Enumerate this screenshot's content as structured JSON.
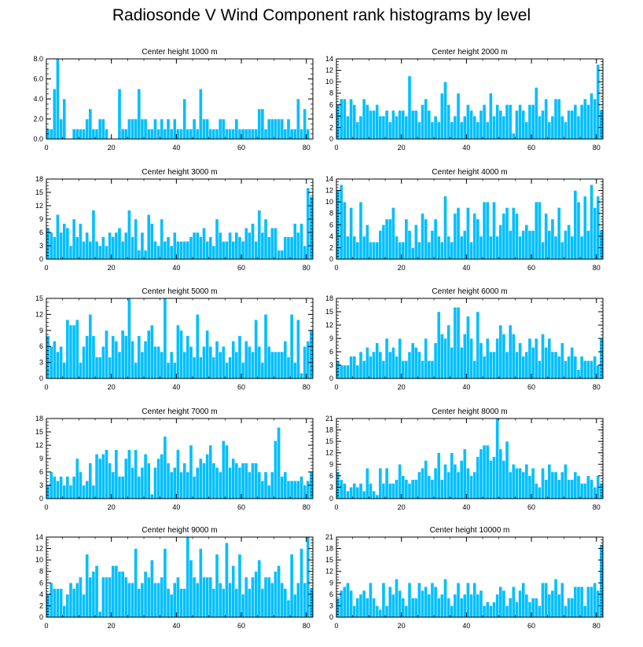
{
  "title": "Radiosonde V Wind Component rank histograms by level",
  "colors": {
    "bar": "#00bfff",
    "bar_edge": "#ffffff",
    "axis": "#000000"
  },
  "chart_data": [
    {
      "type": "bar",
      "title": "Center height 1000 m",
      "ylim": [
        0,
        8
      ],
      "yticks": [
        0,
        2,
        4,
        6,
        8
      ],
      "ytick_labels": [
        "0.0",
        "2.0",
        "4.0",
        "6.0",
        "8.0"
      ],
      "xlim": [
        0,
        82
      ],
      "xticks": [
        0,
        20,
        40,
        60,
        80
      ],
      "xtick_labels": [
        "0",
        "20",
        "40",
        "60",
        "80"
      ],
      "values": [
        1,
        1,
        5,
        8,
        2,
        4,
        0,
        0,
        1,
        1,
        1,
        1,
        2,
        3,
        1,
        1,
        2,
        2,
        1,
        0,
        0,
        0,
        5,
        1,
        1,
        2,
        2,
        2,
        5,
        2,
        2,
        1,
        1,
        2,
        1,
        2,
        1,
        2,
        1,
        2,
        1,
        1,
        4,
        1,
        1,
        2,
        1,
        5,
        2,
        2,
        1,
        1,
        1,
        2,
        2,
        1,
        1,
        1,
        2,
        1,
        1,
        1,
        1,
        1,
        1,
        3,
        3,
        1,
        2,
        2,
        2,
        2,
        2,
        1,
        2,
        1,
        1,
        4,
        1,
        3,
        1,
        0
      ]
    },
    {
      "type": "bar",
      "title": "Center height 2000 m",
      "ylim": [
        0,
        14
      ],
      "yticks": [
        0,
        2,
        4,
        6,
        8,
        10,
        12,
        14
      ],
      "ytick_labels": [
        "0",
        "2",
        "4",
        "6",
        "8",
        "10",
        "12",
        "14"
      ],
      "xlim": [
        0,
        82
      ],
      "xticks": [
        0,
        20,
        40,
        60,
        80
      ],
      "xtick_labels": [
        "0",
        "20",
        "40",
        "60",
        "80"
      ],
      "values": [
        6,
        7,
        7,
        4,
        7,
        6,
        3,
        4,
        7,
        6,
        5,
        5,
        6,
        4,
        4,
        5,
        3,
        5,
        4,
        5,
        5,
        4,
        11,
        5,
        5,
        3,
        6,
        7,
        5,
        3,
        4,
        3,
        8,
        10,
        6,
        3,
        4,
        8,
        3,
        4,
        6,
        5,
        4,
        3,
        5,
        6,
        3,
        8,
        4,
        6,
        5,
        4,
        6,
        6,
        1,
        5,
        6,
        5,
        3,
        6,
        6,
        9,
        4,
        5,
        7,
        3,
        4,
        7,
        7,
        4,
        3,
        5,
        5,
        6,
        4,
        6,
        7,
        6,
        8,
        7,
        13,
        5
      ]
    },
    {
      "type": "bar",
      "title": "Center height 3000 m",
      "ylim": [
        0,
        18
      ],
      "yticks": [
        0,
        3,
        6,
        9,
        12,
        15,
        18
      ],
      "ytick_labels": [
        "0",
        "3",
        "6",
        "9",
        "12",
        "15",
        "18"
      ],
      "xlim": [
        0,
        82
      ],
      "xticks": [
        0,
        20,
        40,
        60,
        80
      ],
      "xtick_labels": [
        "0",
        "20",
        "40",
        "60",
        "80"
      ],
      "values": [
        7,
        6,
        5,
        10,
        6,
        8,
        7,
        3,
        9,
        5,
        8,
        4,
        6,
        4,
        11,
        4,
        3,
        5,
        3,
        6,
        5,
        6,
        7,
        4,
        6,
        11,
        5,
        9,
        2,
        6,
        2,
        10,
        8,
        4,
        3,
        9,
        4,
        5,
        3,
        6,
        4,
        4,
        4,
        4,
        5,
        6,
        6,
        5,
        7,
        4,
        5,
        3,
        9,
        6,
        4,
        4,
        6,
        4,
        6,
        5,
        4,
        7,
        6,
        8,
        4,
        11,
        6,
        9,
        5,
        7,
        7,
        2,
        2,
        5,
        5,
        5,
        8,
        6,
        8,
        3,
        16,
        14
      ]
    },
    {
      "type": "bar",
      "title": "Center height 4000 m",
      "ylim": [
        0,
        14
      ],
      "yticks": [
        0,
        2,
        4,
        6,
        8,
        10,
        12,
        14
      ],
      "ytick_labels": [
        "0",
        "2",
        "4",
        "6",
        "8",
        "10",
        "12",
        "14"
      ],
      "xlim": [
        0,
        82
      ],
      "xticks": [
        0,
        20,
        40,
        60,
        80
      ],
      "xtick_labels": [
        "0",
        "20",
        "40",
        "60",
        "80"
      ],
      "values": [
        12,
        13,
        10,
        4,
        9,
        4,
        3,
        10,
        4,
        6,
        3,
        3,
        3,
        5,
        6,
        7,
        7,
        9,
        4,
        3,
        3,
        7,
        5,
        2,
        6,
        3,
        8,
        7,
        3,
        5,
        7,
        4,
        3,
        11,
        4,
        3,
        8,
        9,
        4,
        5,
        9,
        3,
        8,
        7,
        4,
        10,
        10,
        4,
        10,
        4,
        6,
        8,
        9,
        5,
        9,
        8,
        4,
        5,
        6,
        5,
        5,
        10,
        10,
        3,
        8,
        5,
        7,
        4,
        9,
        3,
        5,
        6,
        4,
        12,
        10,
        4,
        11,
        5,
        13,
        9,
        11,
        5
      ]
    },
    {
      "type": "bar",
      "title": "Center height 5000 m",
      "ylim": [
        0,
        15
      ],
      "yticks": [
        0,
        3,
        6,
        9,
        12,
        15
      ],
      "ytick_labels": [
        "0",
        "3",
        "6",
        "9",
        "12",
        "15"
      ],
      "xlim": [
        0,
        82
      ],
      "xticks": [
        0,
        20,
        40,
        60,
        80
      ],
      "xtick_labels": [
        "0",
        "20",
        "40",
        "60",
        "80"
      ],
      "values": [
        8,
        6,
        7,
        5,
        6,
        3,
        11,
        10,
        10,
        11,
        3,
        6,
        8,
        12,
        8,
        4,
        4,
        6,
        9,
        4,
        8,
        7,
        5,
        9,
        8,
        15,
        7,
        3,
        8,
        5,
        7,
        9,
        10,
        6,
        6,
        5,
        15,
        3,
        5,
        3,
        10,
        9,
        5,
        8,
        6,
        4,
        12,
        4,
        6,
        9,
        6,
        4,
        7,
        5,
        6,
        3,
        4,
        7,
        5,
        8,
        3,
        7,
        6,
        5,
        11,
        6,
        3,
        12,
        6,
        5,
        5,
        5,
        5,
        7,
        4,
        12,
        3,
        11,
        1,
        6,
        7,
        9
      ]
    },
    {
      "type": "bar",
      "title": "Center height 6000 m",
      "ylim": [
        0,
        18
      ],
      "yticks": [
        0,
        3,
        6,
        9,
        12,
        15,
        18
      ],
      "ytick_labels": [
        "0",
        "3",
        "6",
        "9",
        "12",
        "15",
        "18"
      ],
      "xlim": [
        0,
        82
      ],
      "xticks": [
        0,
        20,
        40,
        60,
        80
      ],
      "xtick_labels": [
        "0",
        "20",
        "40",
        "60",
        "80"
      ],
      "values": [
        4,
        3,
        3,
        3,
        5,
        5,
        3,
        6,
        4,
        7,
        5,
        6,
        8,
        6,
        4,
        9,
        6,
        7,
        5,
        9,
        4,
        4,
        6,
        8,
        7,
        6,
        4,
        9,
        4,
        4,
        8,
        15,
        10,
        9,
        12,
        7,
        16,
        16,
        7,
        10,
        14,
        9,
        4,
        15,
        8,
        5,
        9,
        6,
        6,
        9,
        12,
        10,
        6,
        12,
        10,
        6,
        8,
        5,
        6,
        9,
        7,
        9,
        4,
        10,
        7,
        9,
        6,
        6,
        5,
        8,
        4,
        5,
        7,
        5,
        2,
        5,
        4,
        4,
        4,
        5,
        3,
        9
      ]
    },
    {
      "type": "bar",
      "title": "Center height 7000 m",
      "ylim": [
        0,
        18
      ],
      "yticks": [
        0,
        3,
        6,
        9,
        12,
        15,
        18
      ],
      "ytick_labels": [
        "0",
        "3",
        "6",
        "9",
        "12",
        "15",
        "18"
      ],
      "xlim": [
        0,
        82
      ],
      "xticks": [
        0,
        20,
        40,
        60,
        80
      ],
      "xtick_labels": [
        "0",
        "20",
        "40",
        "60",
        "80"
      ],
      "values": [
        3,
        6,
        5,
        4,
        5,
        3,
        5,
        3,
        5,
        9,
        6,
        3,
        4,
        8,
        3,
        10,
        9,
        10,
        11,
        8,
        6,
        11,
        5,
        5,
        9,
        11,
        7,
        11,
        5,
        7,
        10,
        8,
        1,
        7,
        9,
        10,
        14,
        8,
        6,
        7,
        11,
        6,
        8,
        6,
        12,
        5,
        7,
        9,
        8,
        10,
        12,
        8,
        7,
        6,
        13,
        12,
        7,
        9,
        8,
        7,
        8,
        8,
        6,
        8,
        8,
        6,
        4,
        6,
        3,
        6,
        13,
        16,
        5,
        6,
        4,
        4,
        4,
        4,
        5,
        3,
        4,
        6
      ]
    },
    {
      "type": "bar",
      "title": "Center height 8000 m",
      "ylim": [
        0,
        21
      ],
      "yticks": [
        0,
        3,
        6,
        9,
        12,
        15,
        18,
        21
      ],
      "ytick_labels": [
        "0",
        "3",
        "6",
        "9",
        "12",
        "15",
        "18",
        "21"
      ],
      "xlim": [
        0,
        82
      ],
      "xticks": [
        0,
        20,
        40,
        60,
        80
      ],
      "xtick_labels": [
        "0",
        "20",
        "40",
        "60",
        "80"
      ],
      "values": [
        7,
        5,
        4,
        2,
        3,
        4,
        3,
        4,
        2,
        8,
        4,
        2,
        1,
        8,
        4,
        8,
        4,
        4,
        5,
        9,
        6,
        5,
        4,
        5,
        5,
        7,
        8,
        10,
        6,
        5,
        8,
        12,
        5,
        9,
        7,
        12,
        9,
        7,
        10,
        13,
        8,
        6,
        7,
        11,
        13,
        14,
        14,
        10,
        11,
        21,
        13,
        10,
        15,
        7,
        9,
        8,
        8,
        7,
        9,
        6,
        8,
        4,
        3,
        8,
        5,
        9,
        7,
        7,
        5,
        7,
        9,
        5,
        5,
        7,
        6,
        4,
        4,
        6,
        5,
        3,
        6,
        4
      ]
    },
    {
      "type": "bar",
      "title": "Center height 9000 m",
      "ylim": [
        0,
        14
      ],
      "yticks": [
        0,
        2,
        4,
        6,
        8,
        10,
        12,
        14
      ],
      "ytick_labels": [
        "0",
        "2",
        "4",
        "6",
        "8",
        "10",
        "12",
        "14"
      ],
      "xlim": [
        0,
        82
      ],
      "xticks": [
        0,
        20,
        40,
        60,
        80
      ],
      "xtick_labels": [
        "0",
        "20",
        "40",
        "60",
        "80"
      ],
      "values": [
        4,
        6,
        5,
        5,
        5,
        2,
        4,
        6,
        5,
        6,
        7,
        4,
        11,
        7,
        8,
        9,
        1,
        7,
        7,
        7,
        9,
        9,
        8,
        8,
        7,
        6,
        6,
        12,
        5,
        6,
        8,
        7,
        10,
        6,
        6,
        7,
        12,
        5,
        4,
        6,
        7,
        5,
        5,
        14,
        10,
        7,
        6,
        12,
        7,
        7,
        7,
        5,
        11,
        6,
        5,
        13,
        6,
        9,
        5,
        11,
        4,
        7,
        5,
        7,
        8,
        10,
        5,
        7,
        7,
        6,
        8,
        9,
        6,
        5,
        3,
        11,
        4,
        6,
        12,
        6,
        14,
        5
      ]
    },
    {
      "type": "bar",
      "title": "Center height 10000 m",
      "ylim": [
        0,
        21
      ],
      "yticks": [
        0,
        3,
        6,
        9,
        12,
        15,
        18,
        21
      ],
      "ytick_labels": [
        "0",
        "3",
        "6",
        "9",
        "12",
        "15",
        "18",
        "21"
      ],
      "xlim": [
        0,
        82
      ],
      "xticks": [
        0,
        20,
        40,
        60,
        80
      ],
      "xtick_labels": [
        "0",
        "20",
        "40",
        "60",
        "80"
      ],
      "values": [
        5,
        7,
        8,
        9,
        7,
        3,
        5,
        6,
        7,
        5,
        9,
        5,
        3,
        2,
        9,
        3,
        8,
        6,
        10,
        7,
        5,
        3,
        9,
        5,
        5,
        9,
        7,
        8,
        6,
        9,
        8,
        5,
        6,
        10,
        5,
        3,
        6,
        9,
        5,
        6,
        9,
        6,
        9,
        6,
        7,
        3,
        4,
        3,
        4,
        6,
        8,
        7,
        3,
        5,
        8,
        4,
        7,
        9,
        6,
        4,
        5,
        5,
        3,
        9,
        9,
        6,
        7,
        10,
        6,
        9,
        3,
        5,
        5,
        8,
        8,
        8,
        3,
        8,
        8,
        9,
        7,
        19
      ]
    }
  ]
}
